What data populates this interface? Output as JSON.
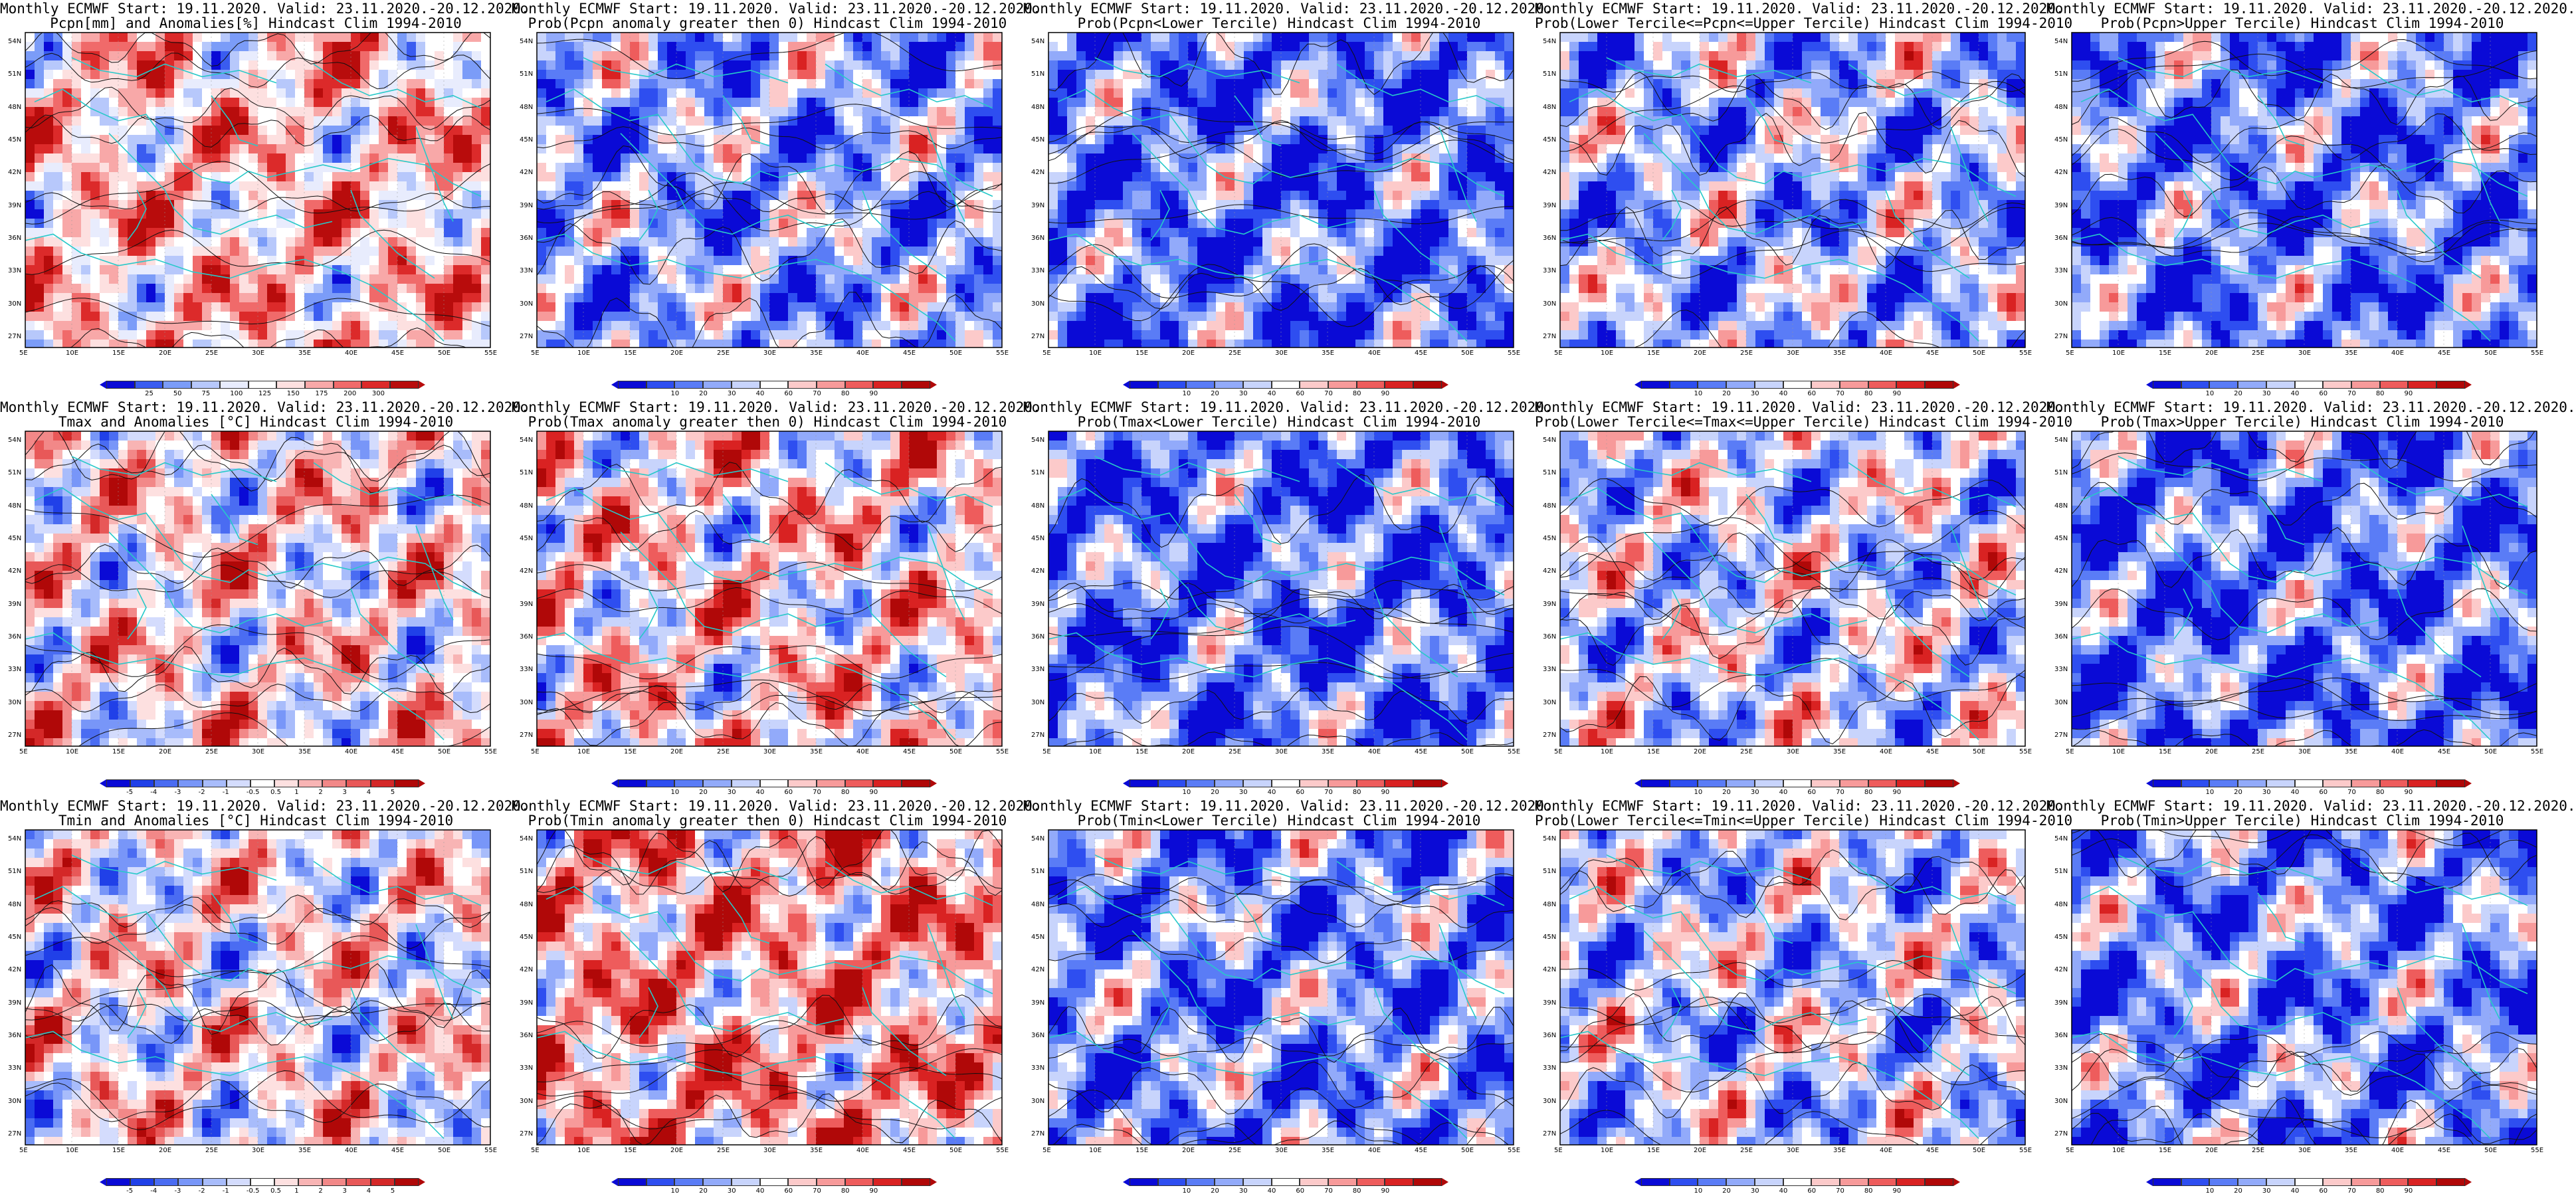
{
  "panels": [
    {
      "id": "r0c0",
      "title1": "Monthly ECMWF Start: 19.11.2020. Valid: 23.11.2020.-20.12.2020.",
      "title2": "Pcpn[mm] and Anomalies[%] Hindcast Clim 1994-2010",
      "scheme": "prcp_anom",
      "bias": 0.2
    },
    {
      "id": "r0c1",
      "title1": "Monthly ECMWF Start: 19.11.2020. Valid: 23.11.2020.-20.12.2020.",
      "title2": "Prob(Pcpn anomaly greater then 0) Hindcast Clim 1994-2010",
      "scheme": "prob",
      "bias": -0.35
    },
    {
      "id": "r0c2",
      "title1": "Monthly ECMWF Start: 19.11.2020. Valid: 23.11.2020.-20.12.2020.",
      "title2": "Prob(Pcpn<Lower Tercile) Hindcast Clim 1994-2010",
      "scheme": "prob",
      "bias": -0.55
    },
    {
      "id": "r0c3",
      "title1": "Monthly ECMWF Start: 19.11.2020. Valid: 23.11.2020.-20.12.2020.",
      "title2": "Prob(Lower Tercile<=Pcpn<=Upper Tercile) Hindcast Clim 1994-2010",
      "scheme": "prob",
      "bias": -0.3
    },
    {
      "id": "r0c4",
      "title1": "Monthly ECMWF Start: 19.11.2020. Valid: 23.11.2020.-20.12.2020.",
      "title2": "Prob(Pcpn>Upper Tercile) Hindcast Clim 1994-2010",
      "scheme": "prob",
      "bias": -0.5
    },
    {
      "id": "r1c0",
      "title1": "Monthly ECMWF Start: 19.11.2020. Valid: 23.11.2020.-20.12.2020.",
      "title2": "Tmax and Anomalies [°C] Hindcast Clim 1994-2010",
      "scheme": "temp_anom",
      "bias": 0.1
    },
    {
      "id": "r1c1",
      "title1": "Monthly ECMWF Start: 19.11.2020. Valid: 23.11.2020.-20.12.2020.",
      "title2": "Prob(Tmax anomaly greater then 0) Hindcast Clim 1994-2010",
      "scheme": "prob",
      "bias": 0.1
    },
    {
      "id": "r1c2",
      "title1": "Monthly ECMWF Start: 19.11.2020. Valid: 23.11.2020.-20.12.2020.",
      "title2": "Prob(Tmax<Lower Tercile) Hindcast Clim 1994-2010",
      "scheme": "prob",
      "bias": -0.55
    },
    {
      "id": "r1c3",
      "title1": "Monthly ECMWF Start: 19.11.2020. Valid: 23.11.2020.-20.12.2020.",
      "title2": "Prob(Lower Tercile<=Tmax<=Upper Tercile) Hindcast Clim 1994-2010",
      "scheme": "prob",
      "bias": -0.15
    },
    {
      "id": "r1c4",
      "title1": "Monthly ECMWF Start: 19.11.2020. Valid: 23.11.2020.-20.12.2020.",
      "title2": "Prob(Tmax>Upper Tercile) Hindcast Clim 1994-2010",
      "scheme": "prob",
      "bias": -0.55
    },
    {
      "id": "r2c0",
      "title1": "Monthly ECMWF Start: 19.11.2020. Valid: 23.11.2020.-20.12.2020.",
      "title2": "Tmin and Anomalies [°C] Hindcast Clim 1994-2010",
      "scheme": "temp_anom",
      "bias": 0.05
    },
    {
      "id": "r2c1",
      "title1": "Monthly ECMWF Start: 19.11.2020. Valid: 23.11.2020.-20.12.2020.",
      "title2": "Prob(Tmin anomaly greater then 0) Hindcast Clim 1994-2010",
      "scheme": "prob",
      "bias": 0.3
    },
    {
      "id": "r2c2",
      "title1": "Monthly ECMWF Start: 19.11.2020. Valid: 23.11.2020.-20.12.2020.",
      "title2": "Prob(Tmin<Lower Tercile) Hindcast Clim 1994-2010",
      "scheme": "prob",
      "bias": -0.45
    },
    {
      "id": "r2c3",
      "title1": "Monthly ECMWF Start: 19.11.2020. Valid: 23.11.2020.-20.12.2020.",
      "title2": "Prob(Lower Tercile<=Tmin<=Upper Tercile) Hindcast Clim 1994-2010",
      "scheme": "prob",
      "bias": -0.2
    },
    {
      "id": "r2c4",
      "title1": "Monthly ECMWF Start: 19.11.2020. Valid: 23.11.2020.-20.12.2020.",
      "title2": "Prob(Tmin>Upper Tercile) Hindcast Clim 1994-2010",
      "scheme": "prob",
      "bias": -0.45
    }
  ],
  "map_axes": {
    "lon_labels": [
      "5E",
      "10E",
      "15E",
      "20E",
      "25E",
      "30E",
      "35E",
      "40E",
      "45E",
      "50E",
      "55E"
    ],
    "lat_labels": [
      "54N",
      "51N",
      "48N",
      "45N",
      "42N",
      "39N",
      "36N",
      "33N",
      "30N",
      "27N"
    ]
  },
  "colorbars": {
    "prcp_anom": {
      "labels": [
        "25",
        "50",
        "75",
        "100",
        "125",
        "150",
        "175",
        "200",
        "300"
      ],
      "colors": [
        "#0a0ad6",
        "#3a5cf0",
        "#7b9cf8",
        "#b7c8fb",
        "#e8ecfd",
        "#ffffff",
        "#fde0e0",
        "#f8a8a8",
        "#f06a6a",
        "#dc2a2a",
        "#b80c0c"
      ]
    },
    "prob": {
      "labels": [
        "10",
        "20",
        "30",
        "40",
        "60",
        "70",
        "80",
        "90"
      ],
      "colors": [
        "#0a0ad6",
        "#2e4ef0",
        "#5a7cf6",
        "#92aafa",
        "#c8d4fc",
        "#ffffff",
        "#fccaca",
        "#f79a9a",
        "#ee5c5c",
        "#d92222",
        "#b00808"
      ]
    },
    "temp_anom": {
      "labels": [
        "-5",
        "-4",
        "-3",
        "-2",
        "-1",
        "-0.5",
        "0.5",
        "1",
        "2",
        "3",
        "4",
        "5"
      ],
      "colors": [
        "#0a0ad6",
        "#2040e8",
        "#4a6cf2",
        "#7896f8",
        "#a8bcfb",
        "#d4dcfd",
        "#ffffff",
        "#fde0e0",
        "#f8b4b4",
        "#f28888",
        "#e85858",
        "#d42828",
        "#b00808"
      ]
    }
  },
  "colors": {
    "border_lines": "#27c9c9",
    "contour_lines": "#111111",
    "map_frame": "#000000"
  }
}
